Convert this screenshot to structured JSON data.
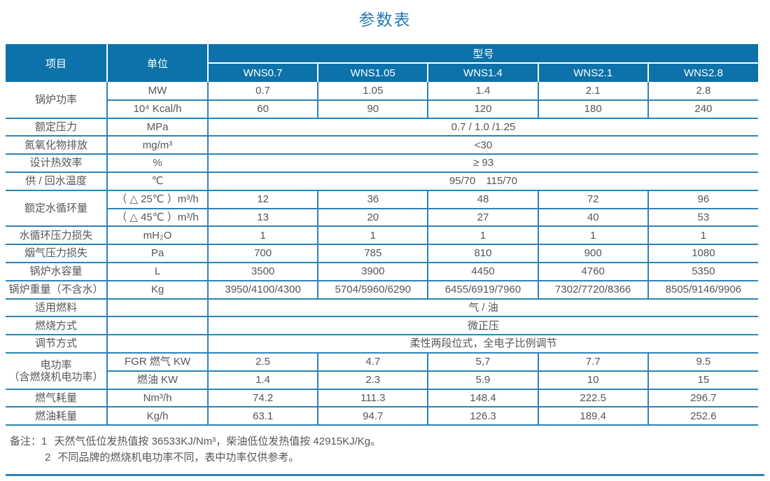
{
  "title": "参数表",
  "colors": {
    "header_bg": "#0d72a9",
    "border": "#2f82b6",
    "text": "#55565a",
    "title": "#2478b5"
  },
  "table": {
    "header": {
      "item": "项目",
      "unit": "单位",
      "model": "型号",
      "models": [
        "WNS0.7",
        "WNS1.05",
        "WNS1.4",
        "WNS2.1",
        "WNS2.8"
      ]
    },
    "rows": [
      [
        {
          "t": "锅炉功率",
          "rs": 2,
          "cls": "label"
        },
        {
          "t": "MW",
          "cls": "unit"
        },
        "0.7",
        "1.05",
        "1.4",
        "2.1",
        "2.8"
      ],
      [
        {
          "t": "10⁴ Kcal/h",
          "cls": "unit"
        },
        "60",
        "90",
        "120",
        "180",
        "240"
      ],
      [
        {
          "t": "额定压力",
          "cls": "label"
        },
        {
          "t": "MPa",
          "cls": "unit"
        },
        {
          "t": "0.7 / 1.0 /1.25",
          "cs": 5
        }
      ],
      [
        {
          "t": "氮氧化物排放",
          "cls": "label"
        },
        {
          "t": "mg/m³",
          "cls": "unit"
        },
        {
          "t": "<30",
          "cs": 5
        }
      ],
      [
        {
          "t": "设计热效率",
          "cls": "label"
        },
        {
          "t": "%",
          "cls": "unit"
        },
        {
          "t": "≥ 93",
          "cs": 5
        }
      ],
      [
        {
          "t": "供 / 回水温度",
          "cls": "label"
        },
        {
          "t": "℃",
          "cls": "unit"
        },
        {
          "t": "95/70　115/70",
          "cs": 5
        }
      ],
      [
        {
          "t": "额定水循环量",
          "rs": 2,
          "cls": "label"
        },
        {
          "t": "（ △ 25℃ ）m³/h",
          "cls": "unit"
        },
        "12",
        "36",
        "48",
        "72",
        "96"
      ],
      [
        {
          "t": "（ △ 45℃ ）m³/h",
          "cls": "unit"
        },
        "13",
        "20",
        "27",
        "40",
        "53"
      ],
      [
        {
          "t": "水循环压力损失",
          "cls": "label"
        },
        {
          "t": "mH₂O",
          "cls": "unit"
        },
        "1",
        "1",
        "1",
        "1",
        "1"
      ],
      [
        {
          "t": "烟气压力损失",
          "cls": "label"
        },
        {
          "t": "Pa",
          "cls": "unit"
        },
        "700",
        "785",
        "810",
        "900",
        "1080"
      ],
      [
        {
          "t": "锅炉水容量",
          "cls": "label"
        },
        {
          "t": "L",
          "cls": "unit"
        },
        "3500",
        "3900",
        "4450",
        "4760",
        "5350"
      ],
      [
        {
          "t": "锅炉重量（不含水）",
          "cls": "label"
        },
        {
          "t": "Kg",
          "cls": "unit"
        },
        "3950/4100/4300",
        "5704/5960/6290",
        "6455/6919/7960",
        "7302/7720/8366",
        "8505/9146/9906"
      ],
      [
        {
          "t": "适用燃料",
          "cls": "label"
        },
        {
          "t": "",
          "cls": "unit"
        },
        {
          "t": "气 / 油",
          "cs": 5
        }
      ],
      [
        {
          "t": "燃烧方式",
          "cls": "label"
        },
        {
          "t": "",
          "cls": "unit"
        },
        {
          "t": "微正压",
          "cs": 5
        }
      ],
      [
        {
          "t": "调节方式",
          "cls": "label"
        },
        {
          "t": "",
          "cls": "unit"
        },
        {
          "t": "柔性两段位式，全电子比例调节",
          "cs": 5
        }
      ],
      [
        {
          "t": "电功率\n（含燃烧机电功率）",
          "rs": 2,
          "cls": "label"
        },
        {
          "t": "FGR 燃气 KW",
          "cls": "unit"
        },
        "2.5",
        "4.7",
        "5,7",
        "7.7",
        "9.5"
      ],
      [
        {
          "t": "燃油 KW",
          "cls": "unit"
        },
        "1.4",
        "2.3",
        "5.9",
        "10",
        "15"
      ],
      [
        {
          "t": "燃气耗量",
          "cls": "label"
        },
        {
          "t": "Nm³/h",
          "cls": "unit"
        },
        "74.2",
        "111.3",
        "148.4",
        "222.5",
        "296.7"
      ],
      [
        {
          "t": "燃油耗量",
          "cls": "label"
        },
        {
          "t": "Kg/h",
          "cls": "unit"
        },
        "63.1",
        "94.7",
        "126.3",
        "189.4",
        "252.6"
      ]
    ]
  },
  "notes": {
    "label": "备注：",
    "items": [
      {
        "num": "1",
        "text": "天然气低位发热值按 36533KJ/Nm³，柴油低位发热值按 42915KJ/Kg。"
      },
      {
        "num": "2",
        "text": "不同品牌的燃烧机电功率不同，表中功率仅供参考。"
      }
    ]
  }
}
